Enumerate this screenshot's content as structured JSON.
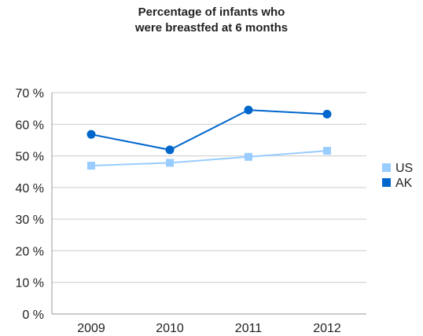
{
  "chart_data": {
    "type": "line",
    "title_line1": "Percentage of infants who",
    "title_line2": "were breastfed at 6 months",
    "xlabel": "",
    "ylabel": "",
    "categories": [
      "2009",
      "2010",
      "2011",
      "2012"
    ],
    "ylim": [
      0,
      70
    ],
    "yticks": [
      0,
      10,
      20,
      30,
      40,
      50,
      60,
      70
    ],
    "ytick_labels": [
      "0 %",
      "10 %",
      "20 %",
      "30 %",
      "40 %",
      "50 %",
      "60 %",
      "70 %"
    ],
    "grid": true,
    "legend_position": "right",
    "series": [
      {
        "name": "US",
        "values": [
          46.9,
          47.8,
          49.7,
          51.6
        ],
        "color": "#99ccff",
        "marker": "square"
      },
      {
        "name": "AK",
        "values": [
          56.8,
          51.9,
          64.5,
          63.2
        ],
        "color": "#0066cc",
        "marker": "circle"
      }
    ]
  }
}
